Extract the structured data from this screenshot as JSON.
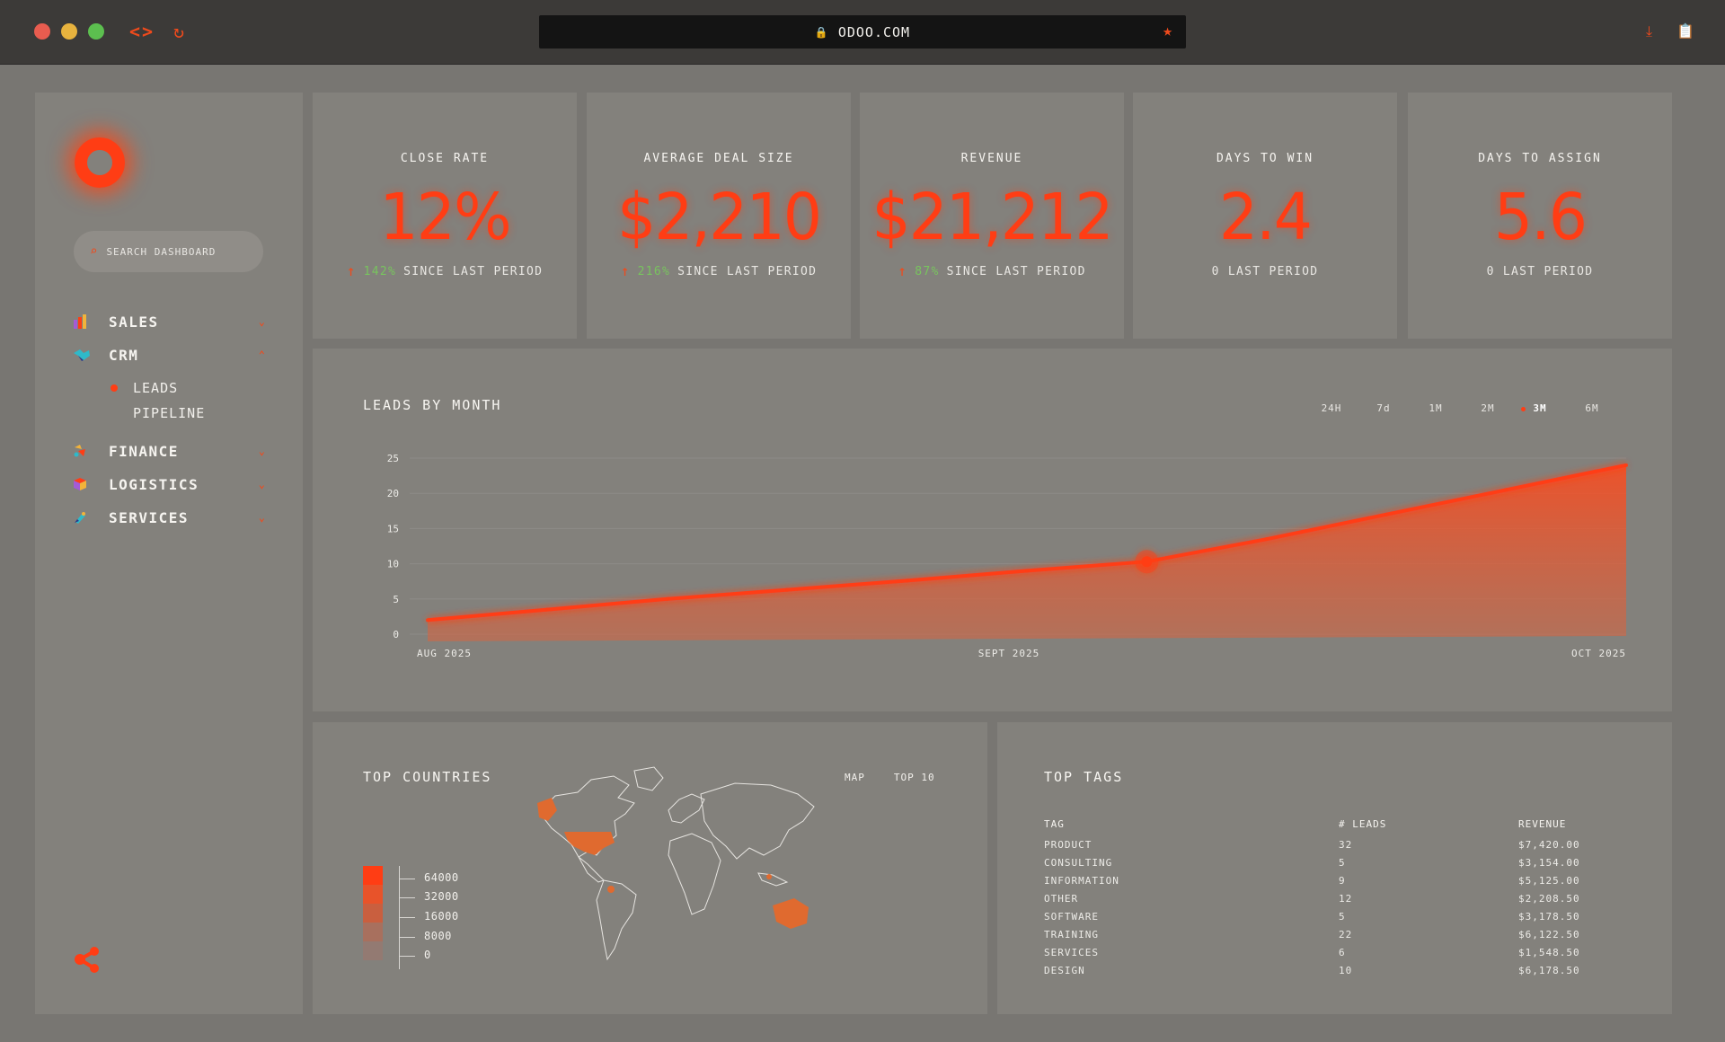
{
  "browser": {
    "url": "ODOO.COM",
    "nav_arrows": "<>",
    "reload_glyph": "↻",
    "lock_glyph": "🔒",
    "star_glyph": "★",
    "download_glyph": "⤓",
    "clipboard_glyph": "📋",
    "accent": "#ef4a1c"
  },
  "sidebar": {
    "search_placeholder": "SEARCH DASHBOARD",
    "items": [
      {
        "label": "SALES",
        "icon": "bar-chart-icon",
        "chevron": "⌄"
      },
      {
        "label": "CRM",
        "icon": "handshake-icon",
        "chevron": "⌃"
      },
      {
        "label": "FINANCE",
        "icon": "finance-icon",
        "chevron": "⌄"
      },
      {
        "label": "LOGISTICS",
        "icon": "box-icon",
        "chevron": "⌄"
      },
      {
        "label": "SERVICES",
        "icon": "services-icon",
        "chevron": "⌄"
      }
    ],
    "crm_sub": [
      {
        "label": "LEADS",
        "active": true
      },
      {
        "label": "PIPELINE",
        "active": false
      }
    ]
  },
  "kpis": [
    {
      "title": "CLOSE RATE",
      "value": "12%",
      "arrow": "↑",
      "pct": "142%",
      "suffix": "SINCE LAST PERIOD"
    },
    {
      "title": "AVERAGE DEAL SIZE",
      "value": "$2,210",
      "arrow": "↑",
      "pct": "216%",
      "suffix": "SINCE LAST PERIOD"
    },
    {
      "title": "REVENUE",
      "value": "$21,212",
      "arrow": "↑",
      "pct": "87%",
      "suffix": "SINCE LAST PERIOD"
    },
    {
      "title": "DAYS TO WIN",
      "value": "2.4",
      "arrow": "",
      "pct": "",
      "suffix": "0 LAST PERIOD"
    },
    {
      "title": "DAYS TO ASSIGN",
      "value": "5.6",
      "arrow": "",
      "pct": "",
      "suffix": "0 LAST PERIOD"
    }
  ],
  "leads_chart": {
    "title": "LEADS BY MONTH",
    "range_tabs": [
      {
        "label": "24H",
        "active": false
      },
      {
        "label": "7d",
        "active": false
      },
      {
        "label": "1M",
        "active": false
      },
      {
        "label": "2M",
        "active": false
      },
      {
        "label": "3M",
        "active": true
      },
      {
        "label": "6M",
        "active": false
      }
    ]
  },
  "chart_data": {
    "type": "area",
    "title": "LEADS BY MONTH",
    "x_labels": [
      "AUG 2025",
      "SEPT 2025",
      "OCT 2025"
    ],
    "x": [
      0,
      0.1,
      0.2,
      0.3,
      0.4,
      0.5,
      0.6,
      0.7,
      0.8,
      0.9,
      1.0
    ],
    "values": [
      2,
      3.5,
      5,
      6.3,
      7.6,
      9,
      10.3,
      13.5,
      17,
      20.5,
      24
    ],
    "highlight_index": 6,
    "ylim": [
      0,
      25
    ],
    "yticks": [
      0,
      5,
      10,
      15,
      20,
      25
    ],
    "line_color": "#ff3d14",
    "fill_color": "#e8532a"
  },
  "countries": {
    "title": "TOP COUNTRIES",
    "tabs": [
      "MAP",
      "TOP 10"
    ],
    "legend": [
      {
        "label": "64000",
        "color": "#ff3d14"
      },
      {
        "label": "32000",
        "color": "#e8532a"
      },
      {
        "label": "16000",
        "color": "#c95f3f"
      },
      {
        "label": "8000",
        "color": "#a8705e"
      },
      {
        "label": "0",
        "color": "#937a72"
      }
    ]
  },
  "tags": {
    "title": "TOP TAGS",
    "headers": [
      "TAG",
      "# LEADS",
      "REVENUE"
    ],
    "rows": [
      [
        "PRODUCT",
        "32",
        "$7,420.00"
      ],
      [
        "CONSULTING",
        "5",
        "$3,154.00"
      ],
      [
        "INFORMATION",
        "9",
        "$5,125.00"
      ],
      [
        "OTHER",
        "12",
        "$2,208.50"
      ],
      [
        "SOFTWARE",
        "5",
        "$3,178.50"
      ],
      [
        "TRAINING",
        "22",
        "$6,122.50"
      ],
      [
        "SERVICES",
        "6",
        "$1,548.50"
      ],
      [
        "DESIGN",
        "10",
        "$6,178.50"
      ]
    ]
  }
}
